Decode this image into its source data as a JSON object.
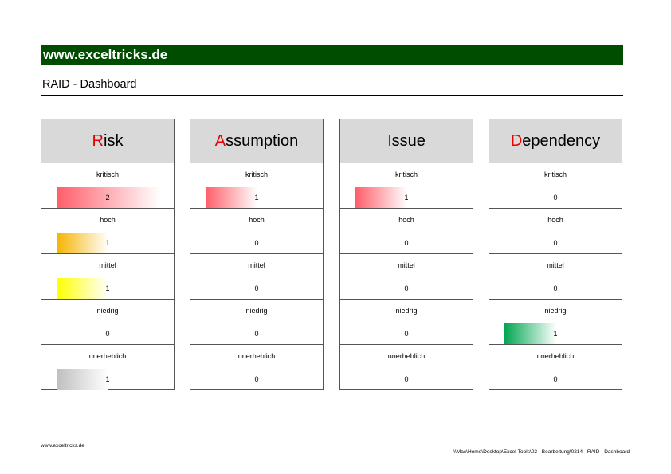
{
  "banner": "www.exceltricks.de",
  "subtitle": "RAID - Dashboard",
  "levels": [
    "kritisch",
    "hoch",
    "mittel",
    "niedrig",
    "unerheblich"
  ],
  "max_value": 2,
  "level_colors": {
    "kritisch": "#ff5e6a",
    "hoch": "#f5b400",
    "mittel": "#ffff00",
    "niedrig": "#00a651",
    "unerheblich": "#bfbfbf"
  },
  "cards": [
    {
      "key": "risk",
      "first_letter": "R",
      "rest": "isk",
      "values": [
        2,
        1,
        1,
        0,
        1
      ]
    },
    {
      "key": "assumption",
      "first_letter": "A",
      "rest": "ssumption",
      "values": [
        1,
        0,
        0,
        0,
        0
      ]
    },
    {
      "key": "issue",
      "first_letter": "I",
      "rest": "ssue",
      "values": [
        1,
        0,
        0,
        0,
        0
      ]
    },
    {
      "key": "dependency",
      "first_letter": "D",
      "rest": "ependency",
      "values": [
        0,
        0,
        0,
        1,
        0
      ]
    }
  ],
  "footer": {
    "left": "www.exceltricks.de",
    "right": "\\\\Mac\\Home\\Desktop\\Excel-Tools\\02 - Bearbeitung\\0214 - RAID - Dashboard"
  }
}
